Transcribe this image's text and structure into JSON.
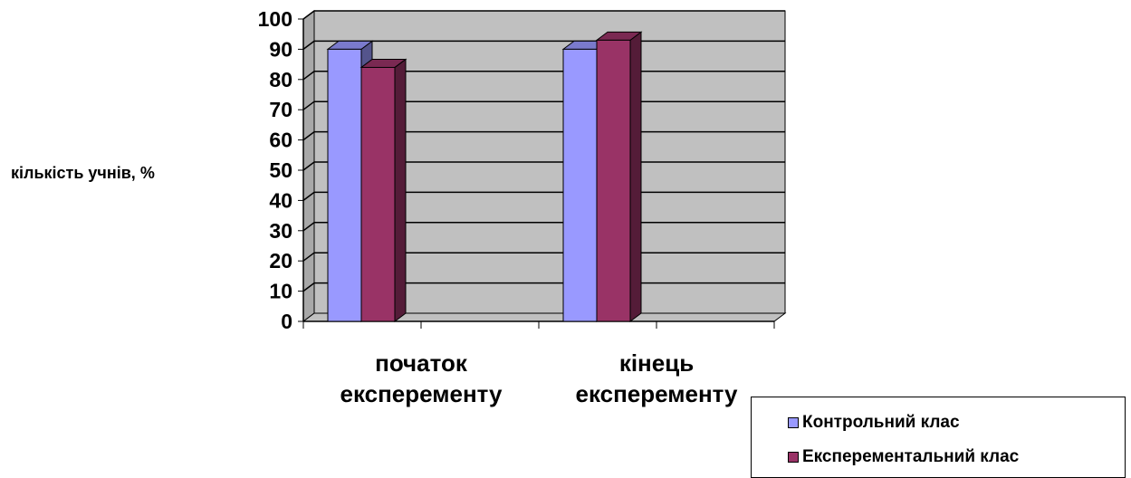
{
  "chart_data": {
    "type": "bar",
    "title": "",
    "xlabel": "",
    "ylabel": "кількість учнів, %",
    "ylim": [
      0,
      100
    ],
    "yticks": [
      0,
      10,
      20,
      30,
      40,
      50,
      60,
      70,
      80,
      90,
      100
    ],
    "grid": true,
    "legend_position": "bottom-right",
    "categories": [
      [
        "початок",
        "експеременту"
      ],
      [
        "кінець",
        "експеременту"
      ]
    ],
    "series": [
      {
        "name": "Контрольний клас",
        "color": "#9999ff",
        "values": [
          90,
          90
        ]
      },
      {
        "name": "Експерементальний клас",
        "color": "#993366",
        "values": [
          84,
          93
        ]
      }
    ],
    "colors": {
      "plot_wall": "#c0c0c0",
      "floor": "#c0c0c0",
      "grid": "#000000"
    }
  }
}
